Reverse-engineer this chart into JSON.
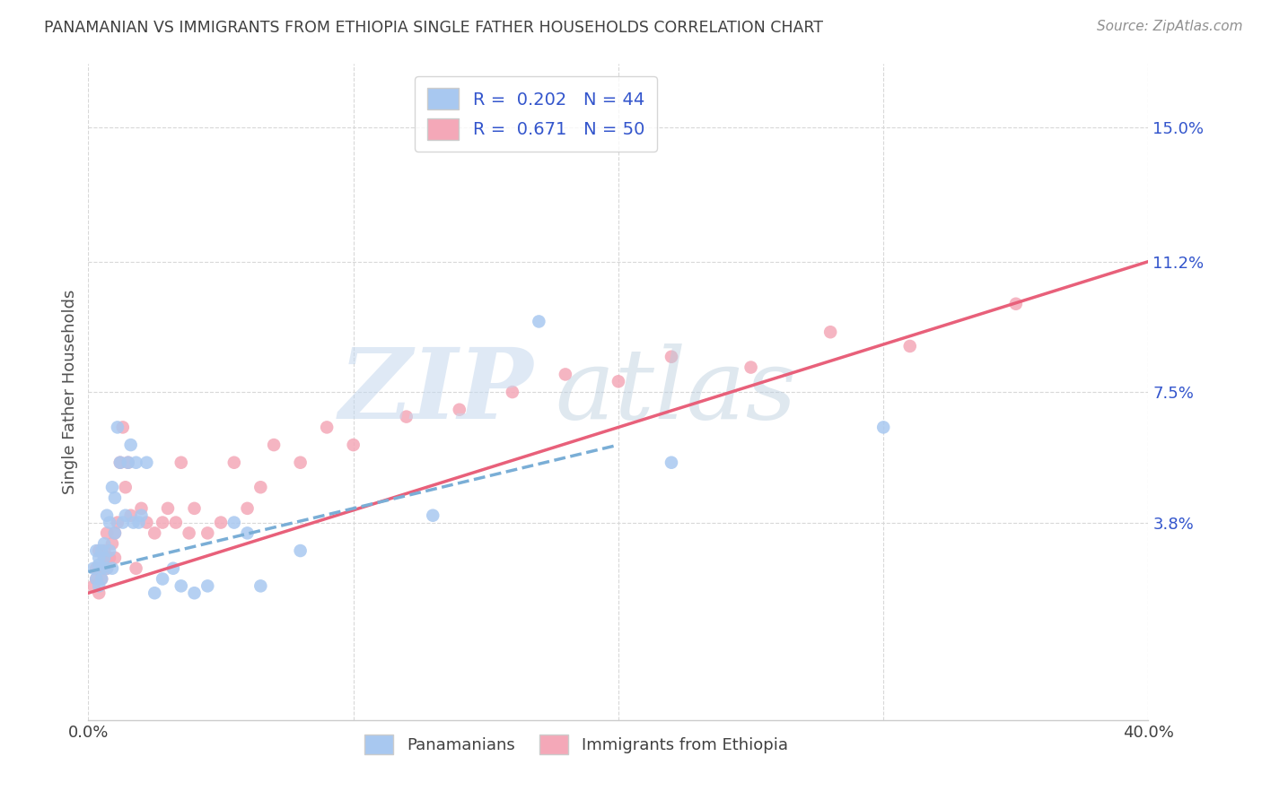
{
  "title": "PANAMANIAN VS IMMIGRANTS FROM ETHIOPIA SINGLE FATHER HOUSEHOLDS CORRELATION CHART",
  "source": "Source: ZipAtlas.com",
  "ylabel": "Single Father Households",
  "ytick_labels": [
    "15.0%",
    "11.2%",
    "7.5%",
    "3.8%"
  ],
  "ytick_values": [
    0.15,
    0.112,
    0.075,
    0.038
  ],
  "xlim": [
    0.0,
    0.4
  ],
  "ylim": [
    -0.018,
    0.168
  ],
  "pan_R": 0.202,
  "pan_N": 44,
  "eth_R": 0.671,
  "eth_N": 50,
  "pan_color": "#a8c8f0",
  "eth_color": "#f4a8b8",
  "pan_line_color": "#7aaed6",
  "eth_line_color": "#e8607a",
  "title_color": "#404040",
  "source_color": "#909090",
  "grid_color": "#d8d8d8",
  "legend_text_color": "#3355cc",
  "pan_line_start_x": 0.0,
  "pan_line_start_y": 0.024,
  "pan_line_end_x": 0.2,
  "pan_line_end_y": 0.06,
  "eth_line_start_x": 0.0,
  "eth_line_start_y": 0.018,
  "eth_line_end_x": 0.4,
  "eth_line_end_y": 0.112,
  "pan_scatter_x": [
    0.002,
    0.003,
    0.003,
    0.004,
    0.004,
    0.004,
    0.005,
    0.005,
    0.005,
    0.006,
    0.006,
    0.007,
    0.007,
    0.008,
    0.008,
    0.009,
    0.009,
    0.01,
    0.01,
    0.011,
    0.012,
    0.013,
    0.014,
    0.015,
    0.016,
    0.017,
    0.018,
    0.019,
    0.02,
    0.022,
    0.025,
    0.028,
    0.032,
    0.035,
    0.04,
    0.045,
    0.055,
    0.06,
    0.065,
    0.08,
    0.13,
    0.17,
    0.22,
    0.3
  ],
  "pan_scatter_y": [
    0.025,
    0.022,
    0.03,
    0.026,
    0.028,
    0.02,
    0.025,
    0.03,
    0.022,
    0.028,
    0.032,
    0.025,
    0.04,
    0.03,
    0.038,
    0.025,
    0.048,
    0.035,
    0.045,
    0.065,
    0.055,
    0.038,
    0.04,
    0.055,
    0.06,
    0.038,
    0.055,
    0.038,
    0.04,
    0.055,
    0.018,
    0.022,
    0.025,
    0.02,
    0.018,
    0.02,
    0.038,
    0.035,
    0.02,
    0.03,
    0.04,
    0.095,
    0.055,
    0.065
  ],
  "eth_scatter_x": [
    0.002,
    0.003,
    0.003,
    0.004,
    0.004,
    0.005,
    0.005,
    0.006,
    0.006,
    0.007,
    0.007,
    0.008,
    0.009,
    0.01,
    0.01,
    0.011,
    0.012,
    0.013,
    0.014,
    0.015,
    0.016,
    0.018,
    0.02,
    0.022,
    0.025,
    0.028,
    0.03,
    0.033,
    0.035,
    0.038,
    0.04,
    0.045,
    0.05,
    0.055,
    0.06,
    0.065,
    0.07,
    0.08,
    0.09,
    0.1,
    0.12,
    0.14,
    0.16,
    0.18,
    0.2,
    0.22,
    0.25,
    0.28,
    0.31,
    0.35
  ],
  "eth_scatter_y": [
    0.02,
    0.022,
    0.025,
    0.018,
    0.03,
    0.025,
    0.022,
    0.03,
    0.028,
    0.025,
    0.035,
    0.028,
    0.032,
    0.028,
    0.035,
    0.038,
    0.055,
    0.065,
    0.048,
    0.055,
    0.04,
    0.025,
    0.042,
    0.038,
    0.035,
    0.038,
    0.042,
    0.038,
    0.055,
    0.035,
    0.042,
    0.035,
    0.038,
    0.055,
    0.042,
    0.048,
    0.06,
    0.055,
    0.065,
    0.06,
    0.068,
    0.07,
    0.075,
    0.08,
    0.078,
    0.085,
    0.082,
    0.092,
    0.088,
    0.1
  ]
}
